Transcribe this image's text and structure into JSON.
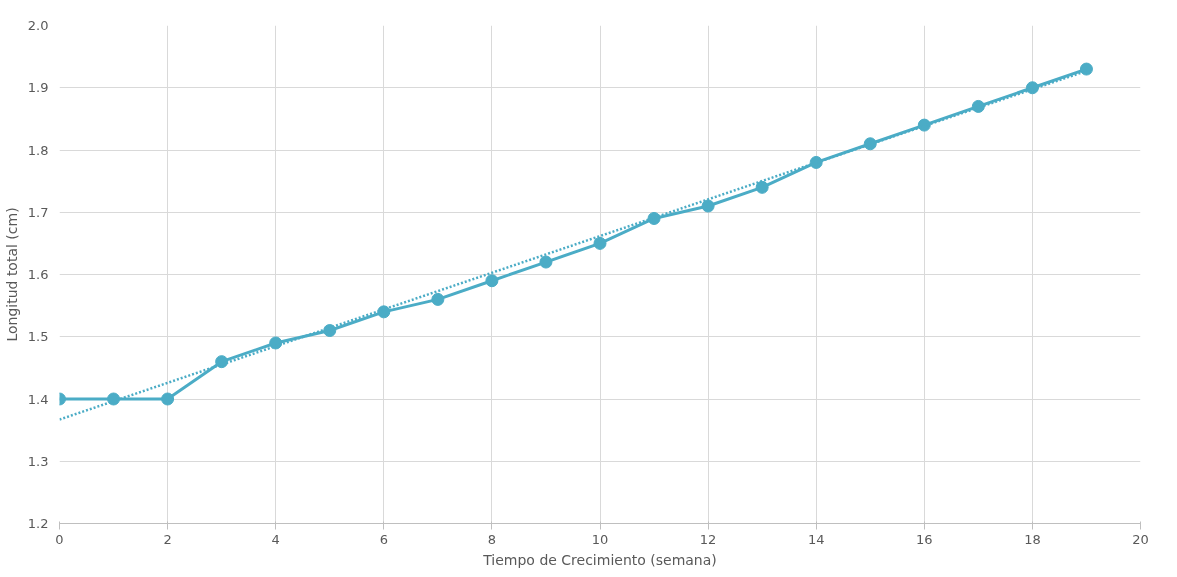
{
  "chart_data": {
    "type": "line",
    "xlabel": "Tiempo de Crecimiento (semana)",
    "ylabel": "Longitud total (cm)",
    "x": [
      0,
      1,
      2,
      3,
      4,
      5,
      6,
      7,
      8,
      9,
      10,
      11,
      12,
      13,
      14,
      15,
      16,
      17,
      18,
      19
    ],
    "series": [
      {
        "color": "#4bacc6",
        "marker": "circle",
        "line_style": "solid",
        "values": [
          1.4,
          1.4,
          1.4,
          1.46,
          1.49,
          1.51,
          1.54,
          1.56,
          1.59,
          1.62,
          1.65,
          1.69,
          1.71,
          1.74,
          1.78,
          1.81,
          1.84,
          1.87,
          1.9,
          1.93
        ]
      },
      {
        "type": "line",
        "color": "#4bacc6",
        "marker": "none",
        "line_style": "dotted",
        "x": [
          0,
          19
        ],
        "values": [
          1.367,
          1.927
        ]
      }
    ],
    "xlim": [
      0,
      20
    ],
    "ylim": [
      1.2,
      2.0
    ],
    "xticks": [
      0,
      2,
      4,
      6,
      8,
      10,
      12,
      14,
      16,
      18,
      20
    ],
    "yticks": [
      {
        "value": 1.2,
        "label": "1.2"
      },
      {
        "value": 1.3,
        "label": "1.3"
      },
      {
        "value": 1.4,
        "label": "1.4"
      },
      {
        "value": 1.5,
        "label": "1.5"
      },
      {
        "value": 1.6,
        "label": "1.6"
      },
      {
        "value": 1.7,
        "label": "1.7"
      },
      {
        "value": 1.8,
        "label": "1.8"
      },
      {
        "value": 1.9,
        "label": "1.9"
      },
      {
        "value": 2.0,
        "label": "2.0"
      }
    ],
    "grid": true
  }
}
